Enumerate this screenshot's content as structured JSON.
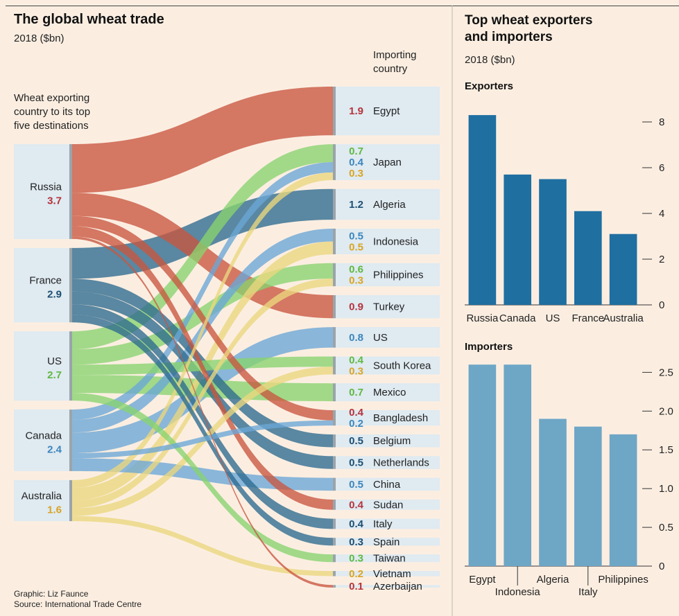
{
  "colors": {
    "Russia": "#c9563f",
    "France": "#2d6a8e",
    "US": "#88d36e",
    "Canada": "#6aa7d6",
    "Australia": "#ead77d",
    "node_bg": "#dfeaf1",
    "exporter_bar": "#1f6fa1",
    "importer_bar": "#6ea6c6"
  },
  "left": {
    "title": "The global wheat trade",
    "subtitle": "2018 ($bn)",
    "exporter_note": [
      "Wheat exporting",
      "country to its top",
      "five destinations"
    ],
    "importer_note": [
      "Importing",
      "country"
    ],
    "credits": [
      "Graphic: Liz Faunce",
      "Source: International Trade Centre"
    ]
  },
  "right": {
    "title": [
      "Top wheat exporters",
      "and importers"
    ],
    "subtitle": "2018 ($bn)",
    "exporters_label": "Exporters",
    "importers_label": "Importers"
  },
  "chart_data": [
    {
      "type": "sankey",
      "title": "The global wheat trade",
      "subtitle": "2018 ($bn)",
      "exporters": [
        {
          "name": "Russia",
          "value": 3.7,
          "value_color": "#b5323b"
        },
        {
          "name": "France",
          "value": 2.9,
          "value_color": "#1d4f73"
        },
        {
          "name": "US",
          "value": 2.7,
          "value_color": "#5fb83f"
        },
        {
          "name": "Canada",
          "value": 2.4,
          "value_color": "#3b86bd"
        },
        {
          "name": "Australia",
          "value": 1.6,
          "value_color": "#d9a424"
        }
      ],
      "importers": [
        {
          "name": "Egypt",
          "flows": [
            {
              "from": "Russia",
              "value": 1.9
            }
          ]
        },
        {
          "name": "Japan",
          "flows": [
            {
              "from": "US",
              "value": 0.7
            },
            {
              "from": "Canada",
              "value": 0.4
            },
            {
              "from": "Australia",
              "value": 0.3
            }
          ]
        },
        {
          "name": "Algeria",
          "flows": [
            {
              "from": "France",
              "value": 1.2
            }
          ]
        },
        {
          "name": "Indonesia",
          "flows": [
            {
              "from": "Canada",
              "value": 0.5
            },
            {
              "from": "Australia",
              "value": 0.5
            }
          ]
        },
        {
          "name": "Philippines",
          "flows": [
            {
              "from": "US",
              "value": 0.6
            },
            {
              "from": "Australia",
              "value": 0.3
            }
          ]
        },
        {
          "name": "Turkey",
          "flows": [
            {
              "from": "Russia",
              "value": 0.9
            }
          ]
        },
        {
          "name": "US",
          "flows": [
            {
              "from": "Canada",
              "value": 0.8
            }
          ]
        },
        {
          "name": "South Korea",
          "flows": [
            {
              "from": "US",
              "value": 0.4
            },
            {
              "from": "Australia",
              "value": 0.3
            }
          ]
        },
        {
          "name": "Mexico",
          "flows": [
            {
              "from": "US",
              "value": 0.7
            }
          ]
        },
        {
          "name": "Bangladesh",
          "flows": [
            {
              "from": "Russia",
              "value": 0.4
            },
            {
              "from": "Canada",
              "value": 0.2
            }
          ]
        },
        {
          "name": "Belgium",
          "flows": [
            {
              "from": "France",
              "value": 0.5
            }
          ]
        },
        {
          "name": "Netherlands",
          "flows": [
            {
              "from": "France",
              "value": 0.5
            }
          ]
        },
        {
          "name": "China",
          "flows": [
            {
              "from": "Canada",
              "value": 0.5
            }
          ]
        },
        {
          "name": "Sudan",
          "flows": [
            {
              "from": "Russia",
              "value": 0.4
            }
          ]
        },
        {
          "name": "Italy",
          "flows": [
            {
              "from": "France",
              "value": 0.4
            }
          ]
        },
        {
          "name": "Spain",
          "flows": [
            {
              "from": "France",
              "value": 0.3
            }
          ]
        },
        {
          "name": "Taiwan",
          "flows": [
            {
              "from": "US",
              "value": 0.3
            }
          ]
        },
        {
          "name": "Vietnam",
          "flows": [
            {
              "from": "Australia",
              "value": 0.2
            }
          ]
        },
        {
          "name": "Azerbaijan",
          "flows": [
            {
              "from": "Russia",
              "value": 0.1
            }
          ]
        }
      ]
    },
    {
      "type": "bar",
      "title": "Exporters",
      "categories": [
        "Russia",
        "Canada",
        "US",
        "France",
        "Australia"
      ],
      "values": [
        8.3,
        5.7,
        5.5,
        4.1,
        3.1
      ],
      "ylim": [
        0,
        9
      ],
      "yticks": [
        "0",
        "2",
        "4",
        "6",
        "8"
      ],
      "ytick_values": [
        0,
        2,
        4,
        6,
        8
      ],
      "grid": false
    },
    {
      "type": "bar",
      "title": "Importers",
      "categories": [
        "Egypt",
        "Indonesia",
        "Algeria",
        "Italy",
        "Philippines"
      ],
      "values": [
        2.6,
        2.6,
        1.9,
        1.8,
        1.7
      ],
      "ylim": [
        0,
        2.7
      ],
      "yticks": [
        "0",
        "0.5",
        "1.0",
        "1.5",
        "2.0",
        "2.5"
      ],
      "ytick_values": [
        0,
        0.5,
        1.0,
        1.5,
        2.0,
        2.5
      ],
      "grid": false
    }
  ]
}
